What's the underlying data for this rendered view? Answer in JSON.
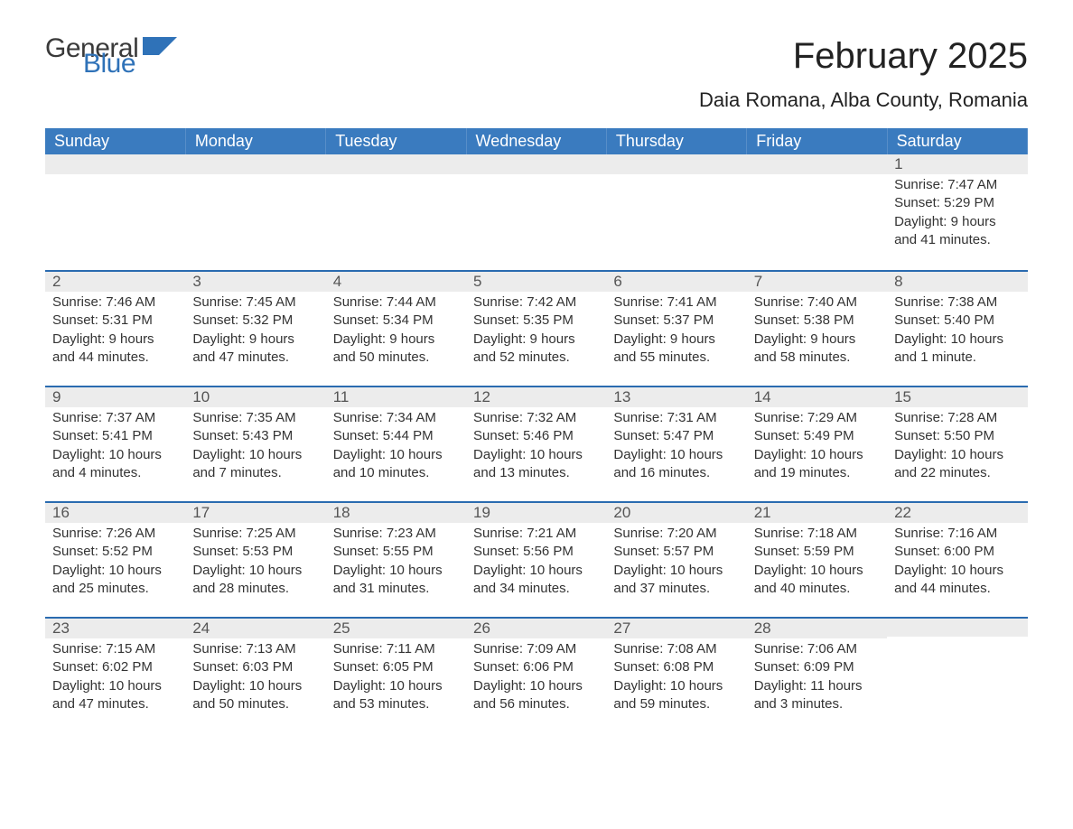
{
  "logo": {
    "part1": "General",
    "part2": "Blue",
    "color_dark": "#3a3a3a",
    "color_blue": "#2f72b8"
  },
  "title": "February 2025",
  "location": "Daia Romana, Alba County, Romania",
  "colors": {
    "header_bg": "#3a7bbf",
    "divider": "#2a6bb0",
    "daynum_bg": "#ececec",
    "page_bg": "#ffffff",
    "text": "#333333"
  },
  "typography": {
    "title_fontsize": 40,
    "location_fontsize": 22,
    "header_fontsize": 18,
    "body_fontsize": 15
  },
  "layout": {
    "columns": 7,
    "rows": 5,
    "first_day_index": 6
  },
  "weekdays": [
    "Sunday",
    "Monday",
    "Tuesday",
    "Wednesday",
    "Thursday",
    "Friday",
    "Saturday"
  ],
  "days": [
    {
      "n": 1,
      "sunrise": "7:47 AM",
      "sunset": "5:29 PM",
      "daylight": "9 hours and 41 minutes."
    },
    {
      "n": 2,
      "sunrise": "7:46 AM",
      "sunset": "5:31 PM",
      "daylight": "9 hours and 44 minutes."
    },
    {
      "n": 3,
      "sunrise": "7:45 AM",
      "sunset": "5:32 PM",
      "daylight": "9 hours and 47 minutes."
    },
    {
      "n": 4,
      "sunrise": "7:44 AM",
      "sunset": "5:34 PM",
      "daylight": "9 hours and 50 minutes."
    },
    {
      "n": 5,
      "sunrise": "7:42 AM",
      "sunset": "5:35 PM",
      "daylight": "9 hours and 52 minutes."
    },
    {
      "n": 6,
      "sunrise": "7:41 AM",
      "sunset": "5:37 PM",
      "daylight": "9 hours and 55 minutes."
    },
    {
      "n": 7,
      "sunrise": "7:40 AM",
      "sunset": "5:38 PM",
      "daylight": "9 hours and 58 minutes."
    },
    {
      "n": 8,
      "sunrise": "7:38 AM",
      "sunset": "5:40 PM",
      "daylight": "10 hours and 1 minute."
    },
    {
      "n": 9,
      "sunrise": "7:37 AM",
      "sunset": "5:41 PM",
      "daylight": "10 hours and 4 minutes."
    },
    {
      "n": 10,
      "sunrise": "7:35 AM",
      "sunset": "5:43 PM",
      "daylight": "10 hours and 7 minutes."
    },
    {
      "n": 11,
      "sunrise": "7:34 AM",
      "sunset": "5:44 PM",
      "daylight": "10 hours and 10 minutes."
    },
    {
      "n": 12,
      "sunrise": "7:32 AM",
      "sunset": "5:46 PM",
      "daylight": "10 hours and 13 minutes."
    },
    {
      "n": 13,
      "sunrise": "7:31 AM",
      "sunset": "5:47 PM",
      "daylight": "10 hours and 16 minutes."
    },
    {
      "n": 14,
      "sunrise": "7:29 AM",
      "sunset": "5:49 PM",
      "daylight": "10 hours and 19 minutes."
    },
    {
      "n": 15,
      "sunrise": "7:28 AM",
      "sunset": "5:50 PM",
      "daylight": "10 hours and 22 minutes."
    },
    {
      "n": 16,
      "sunrise": "7:26 AM",
      "sunset": "5:52 PM",
      "daylight": "10 hours and 25 minutes."
    },
    {
      "n": 17,
      "sunrise": "7:25 AM",
      "sunset": "5:53 PM",
      "daylight": "10 hours and 28 minutes."
    },
    {
      "n": 18,
      "sunrise": "7:23 AM",
      "sunset": "5:55 PM",
      "daylight": "10 hours and 31 minutes."
    },
    {
      "n": 19,
      "sunrise": "7:21 AM",
      "sunset": "5:56 PM",
      "daylight": "10 hours and 34 minutes."
    },
    {
      "n": 20,
      "sunrise": "7:20 AM",
      "sunset": "5:57 PM",
      "daylight": "10 hours and 37 minutes."
    },
    {
      "n": 21,
      "sunrise": "7:18 AM",
      "sunset": "5:59 PM",
      "daylight": "10 hours and 40 minutes."
    },
    {
      "n": 22,
      "sunrise": "7:16 AM",
      "sunset": "6:00 PM",
      "daylight": "10 hours and 44 minutes."
    },
    {
      "n": 23,
      "sunrise": "7:15 AM",
      "sunset": "6:02 PM",
      "daylight": "10 hours and 47 minutes."
    },
    {
      "n": 24,
      "sunrise": "7:13 AM",
      "sunset": "6:03 PM",
      "daylight": "10 hours and 50 minutes."
    },
    {
      "n": 25,
      "sunrise": "7:11 AM",
      "sunset": "6:05 PM",
      "daylight": "10 hours and 53 minutes."
    },
    {
      "n": 26,
      "sunrise": "7:09 AM",
      "sunset": "6:06 PM",
      "daylight": "10 hours and 56 minutes."
    },
    {
      "n": 27,
      "sunrise": "7:08 AM",
      "sunset": "6:08 PM",
      "daylight": "10 hours and 59 minutes."
    },
    {
      "n": 28,
      "sunrise": "7:06 AM",
      "sunset": "6:09 PM",
      "daylight": "11 hours and 3 minutes."
    }
  ],
  "labels": {
    "sunrise": "Sunrise: ",
    "sunset": "Sunset: ",
    "daylight": "Daylight: "
  }
}
